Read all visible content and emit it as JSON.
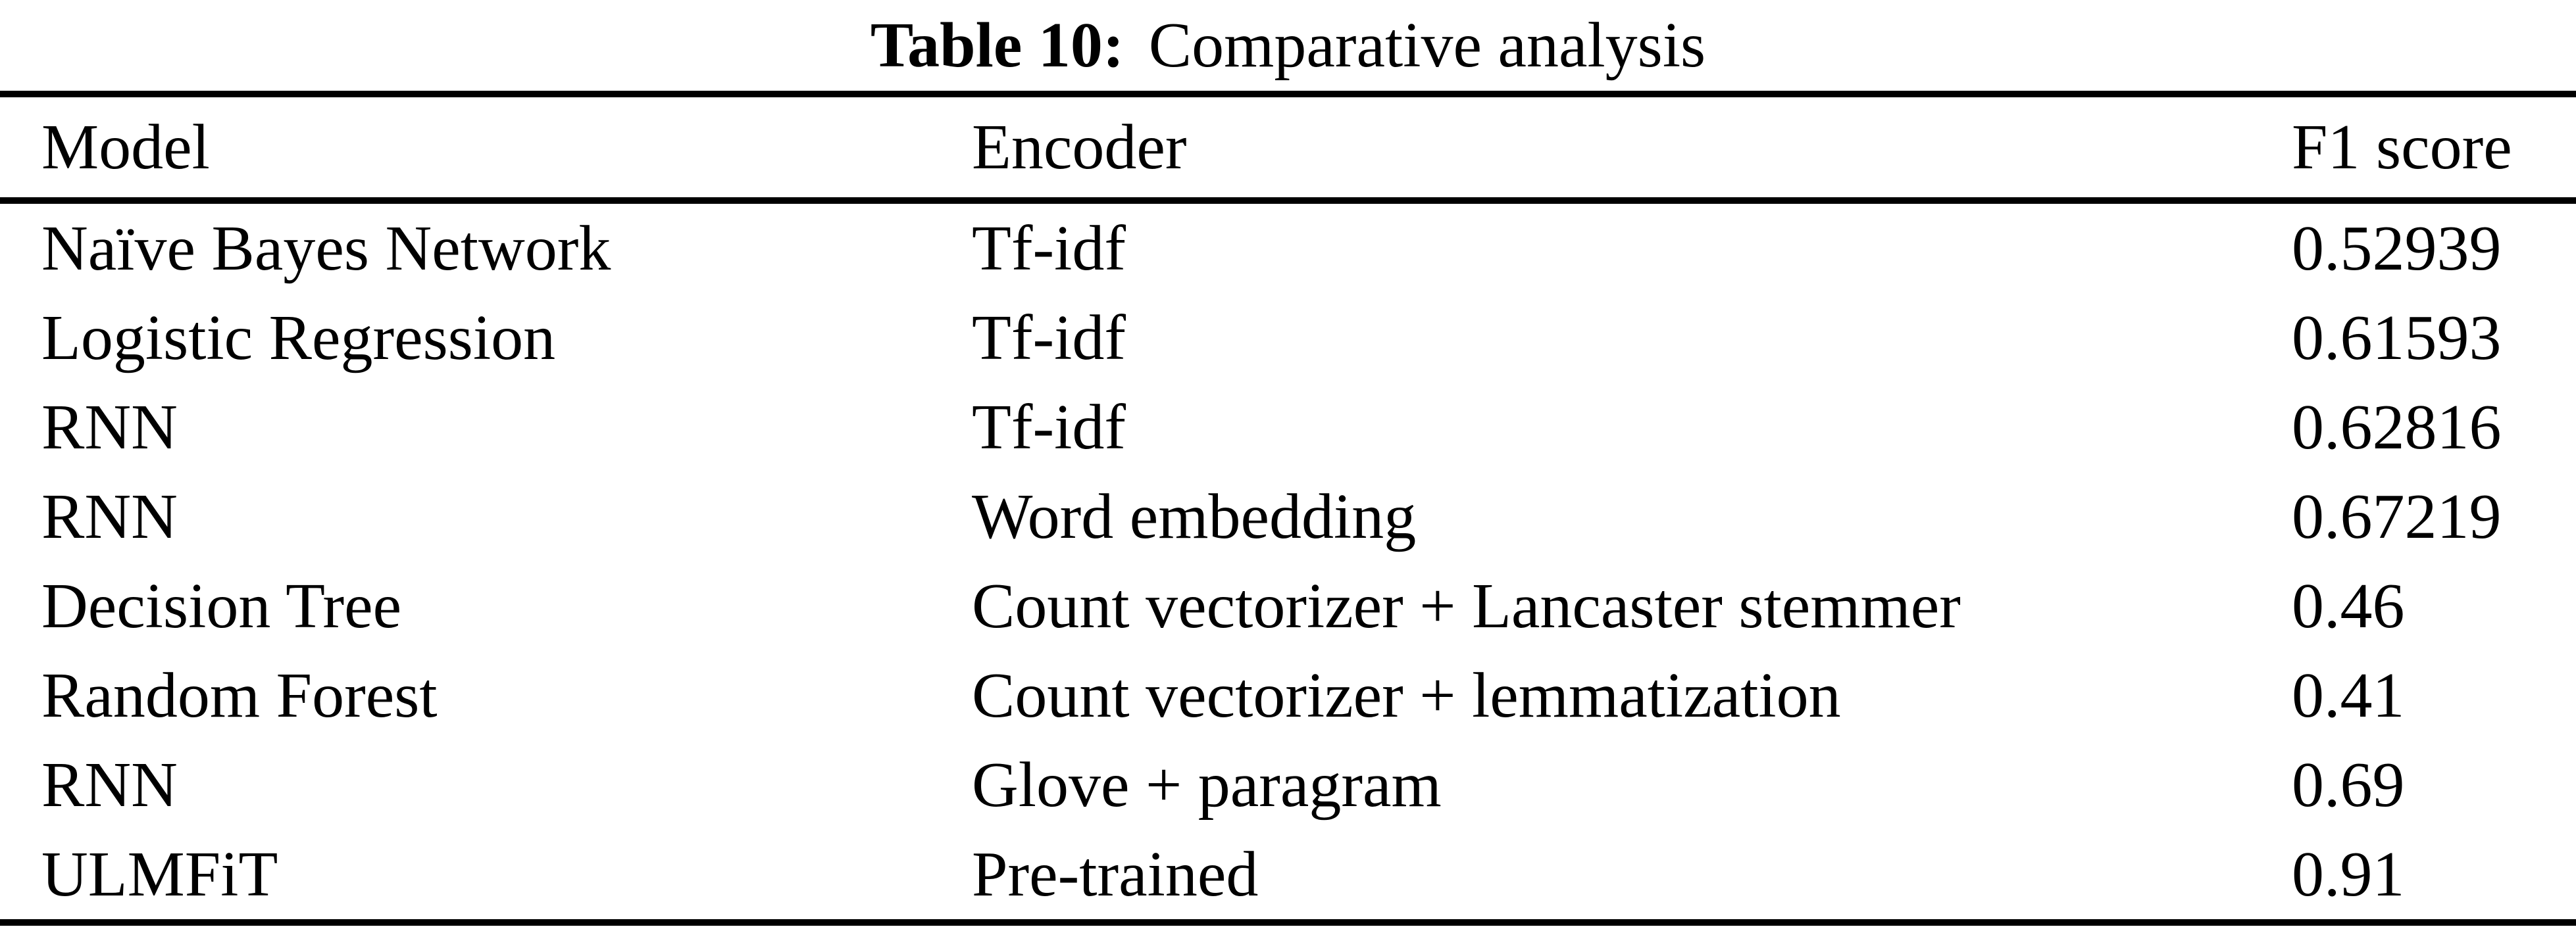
{
  "caption": {
    "label": "Table 10:",
    "title": "Comparative analysis"
  },
  "table": {
    "columns": [
      {
        "key": "model",
        "label": "Model"
      },
      {
        "key": "encoder",
        "label": "Encoder"
      },
      {
        "key": "f1",
        "label": "F1 score"
      }
    ],
    "rows": [
      {
        "model": "Naïve Bayes Network",
        "encoder": "Tf-idf",
        "f1": "0.52939"
      },
      {
        "model": "Logistic Regression",
        "encoder": "Tf-idf",
        "f1": "0.61593"
      },
      {
        "model": "RNN",
        "encoder": "Tf-idf",
        "f1": "0.62816"
      },
      {
        "model": "RNN",
        "encoder": "Word embedding",
        "f1": "0.67219"
      },
      {
        "model": "Decision Tree",
        "encoder": "Count vectorizer + Lancaster stemmer",
        "f1": "0.46"
      },
      {
        "model": "Random Forest",
        "encoder": "Count vectorizer + lemmatization",
        "f1": "0.41"
      },
      {
        "model": "RNN",
        "encoder": "Glove + paragram",
        "f1": "0.69"
      },
      {
        "model": "ULMFiT",
        "encoder": "Pre-trained",
        "f1": "0.91"
      }
    ]
  },
  "colors": {
    "text": "#000000",
    "background": "#ffffff",
    "rule": "#000000"
  }
}
